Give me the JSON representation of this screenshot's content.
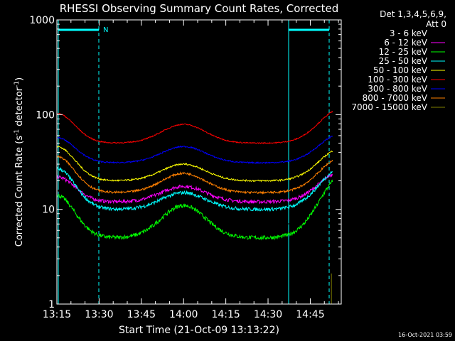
{
  "chart_data": {
    "type": "line",
    "title": "RHESSI Observing Summary Count Rates, Corrected",
    "xlabel": "Start Time (21-Oct-09 13:13:22)",
    "ylabel_main": "Corrected Count Rate (s",
    "ylabel_sup1": "-1",
    "ylabel_mid": " detector",
    "ylabel_sup2": "-1",
    "ylabel_end": ")",
    "yscale": "log",
    "ylim": [
      1,
      1000
    ],
    "xlim_minutes": [
      0,
      101
    ],
    "x_ticks": [
      {
        "t": 0,
        "label": "13:15"
      },
      {
        "t": 15,
        "label": "13:30"
      },
      {
        "t": 30,
        "label": "13:45"
      },
      {
        "t": 45,
        "label": "14:00"
      },
      {
        "t": 60,
        "label": "14:15"
      },
      {
        "t": 75,
        "label": "14:30"
      },
      {
        "t": 90,
        "label": "14:45"
      }
    ],
    "y_ticks": [
      {
        "v": 1,
        "label": "1"
      },
      {
        "v": 10,
        "label": "10"
      },
      {
        "v": 100,
        "label": "100"
      },
      {
        "v": 1000,
        "label": "1000"
      }
    ],
    "legend": {
      "position": "right",
      "header1": "Det 1,3,4,5,6,9,",
      "header2": "Att 0"
    },
    "series": [
      {
        "name": "3 - 6 keV",
        "color": "#000000",
        "base": 16,
        "trough": 6.5,
        "bump": 12.5,
        "end": 17,
        "noise": 1.5
      },
      {
        "name": "6 - 12 keV",
        "color": "#ff00ff",
        "base": 22,
        "trough": 12,
        "bump": 17.5,
        "end": 25,
        "noise": 2
      },
      {
        "name": "12 - 25 keV",
        "color": "#00ff00",
        "base": 14,
        "trough": 5,
        "bump": 11,
        "end": 22,
        "noise": 1.5
      },
      {
        "name": "25 - 50 keV",
        "color": "#00ffff",
        "base": 27,
        "trough": 10,
        "bump": 15,
        "end": 27,
        "noise": 2.5
      },
      {
        "name": "50 - 100 keV",
        "color": "#ffff00",
        "base": 46,
        "trough": 20,
        "bump": 30,
        "end": 44,
        "noise": 2
      },
      {
        "name": "100 - 300 keV",
        "color": "#ff0000",
        "base": 103,
        "trough": 50,
        "bump": 79,
        "end": 115,
        "noise": 3
      },
      {
        "name": "300 - 800 keV",
        "color": "#0000ff",
        "base": 57,
        "trough": 31,
        "bump": 46,
        "end": 63,
        "noise": 2
      },
      {
        "name": "800 - 7000 keV",
        "color": "#ff8000",
        "base": 36,
        "trough": 15,
        "bump": 24,
        "end": 35,
        "noise": 2
      },
      {
        "name": "7000 - 15000 keV",
        "color": "#808000",
        "base": 1,
        "trough": 1,
        "bump": 1,
        "end": 1,
        "noise": 0
      }
    ],
    "annotations": {
      "n_label": "N",
      "timestamp": "16-Oct-2021 03:59"
    }
  }
}
